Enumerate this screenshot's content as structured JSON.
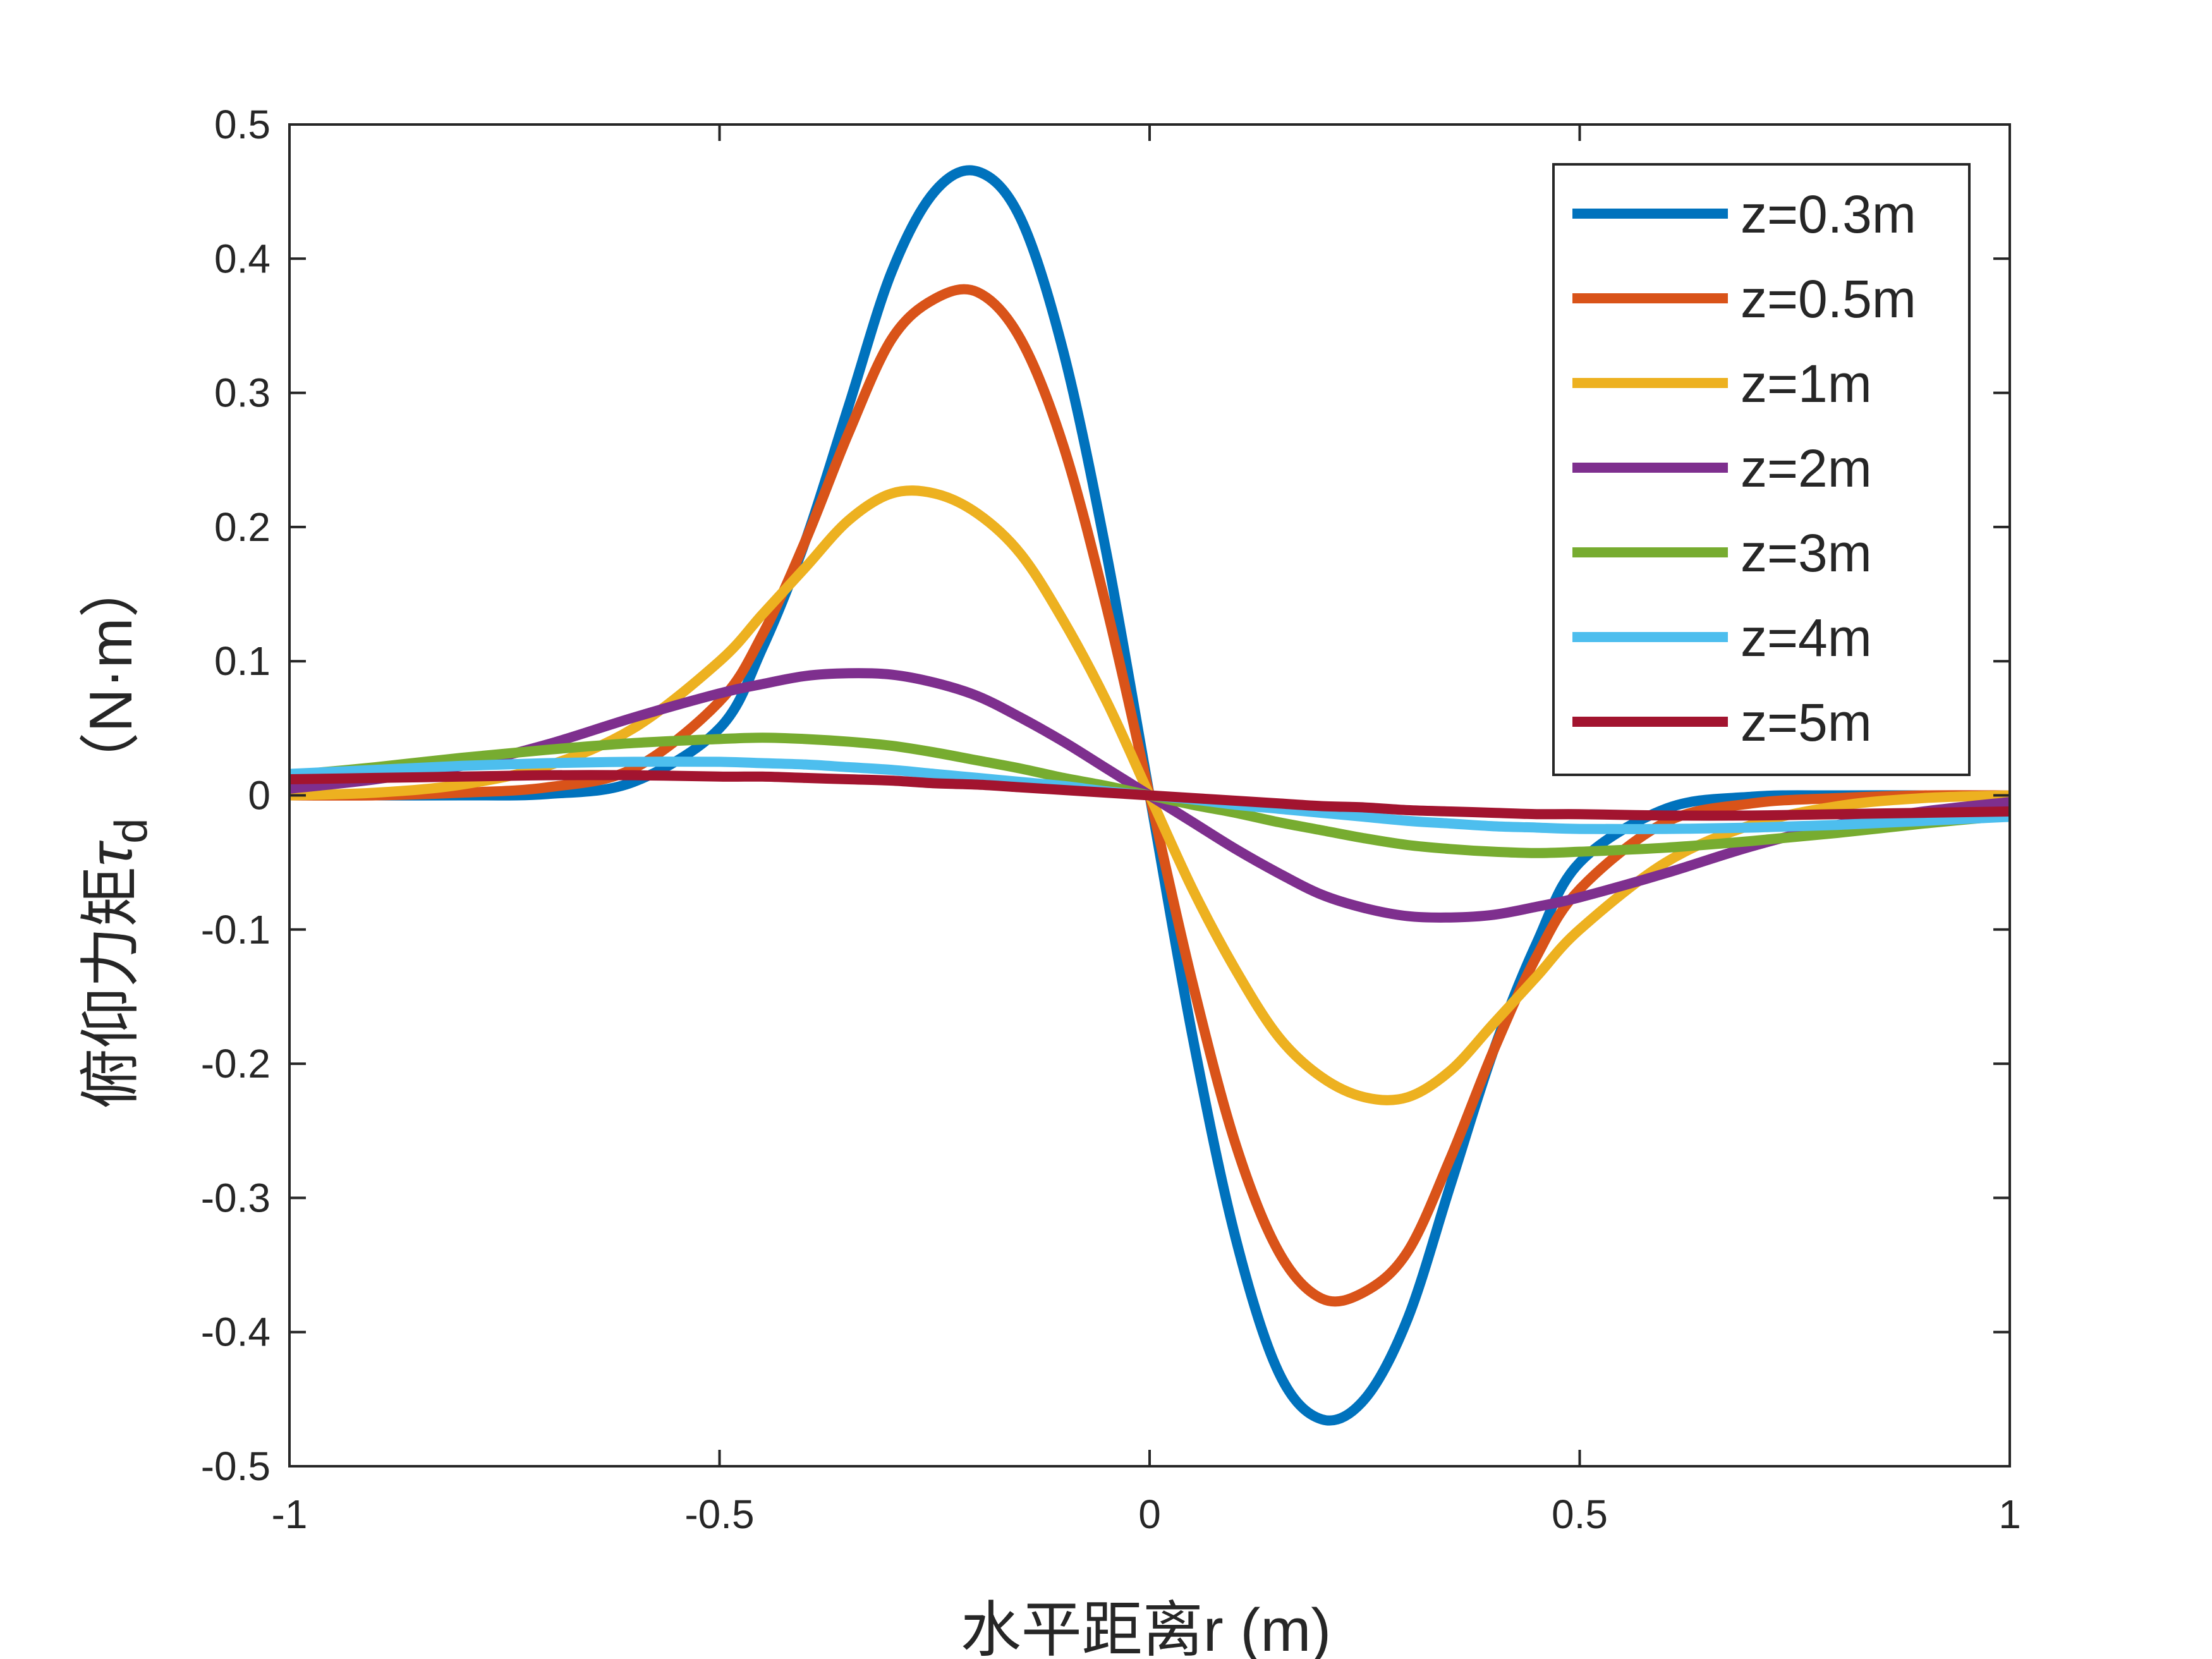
{
  "chart_data": {
    "type": "line",
    "xlabel": "水平距离r (m)",
    "ylabel_main": "俯仰力矩",
    "ylabel_symbol": "τ",
    "ylabel_subscript": "d",
    "ylabel_unit": "（N·m）",
    "xlim": [
      -1,
      1
    ],
    "ylim": [
      -0.5,
      0.5
    ],
    "x_ticks": [
      -1,
      -0.5,
      0,
      0.5,
      1
    ],
    "x_tick_labels": [
      "-1",
      "-0.5",
      "0",
      "0.5",
      "1"
    ],
    "y_ticks": [
      0.5,
      0.4,
      0.3,
      0.2,
      0.1,
      0,
      -0.1,
      -0.2,
      -0.3,
      -0.4,
      -0.5
    ],
    "y_tick_labels": [
      "0.5",
      "0.4",
      "0.3",
      "0.2",
      "0.1",
      "0",
      "-0.1",
      "-0.2",
      "-0.3",
      "-0.4",
      "-0.5"
    ],
    "grid": false,
    "legend_position": "top-right",
    "series": [
      {
        "name": "z=0.3m",
        "color": "#0072BD",
        "x": [
          -1,
          -0.9,
          -0.8,
          -0.7,
          -0.6,
          -0.5,
          -0.45,
          -0.4,
          -0.35,
          -0.3,
          -0.25,
          -0.2,
          -0.15,
          -0.1,
          -0.05,
          0,
          0.05,
          0.1,
          0.15,
          0.2,
          0.25,
          0.3,
          0.35,
          0.4,
          0.45,
          0.5,
          0.6,
          0.7,
          0.8,
          0.9,
          1
        ],
        "y": [
          0,
          0,
          0,
          0.001,
          0.01,
          0.05,
          0.11,
          0.19,
          0.29,
          0.39,
          0.45,
          0.465,
          0.43,
          0.33,
          0.18,
          0,
          -0.18,
          -0.33,
          -0.43,
          -0.465,
          -0.45,
          -0.39,
          -0.29,
          -0.19,
          -0.11,
          -0.05,
          -0.01,
          -0.001,
          0,
          0,
          0
        ]
      },
      {
        "name": "z=0.5m",
        "color": "#D95319",
        "x": [
          -1,
          -0.9,
          -0.8,
          -0.7,
          -0.6,
          -0.5,
          -0.45,
          -0.4,
          -0.35,
          -0.3,
          -0.25,
          -0.2,
          -0.15,
          -0.1,
          -0.05,
          0,
          0.05,
          0.1,
          0.15,
          0.2,
          0.25,
          0.3,
          0.35,
          0.4,
          0.45,
          0.5,
          0.6,
          0.7,
          0.8,
          0.9,
          1
        ],
        "y": [
          0,
          0,
          0.002,
          0.006,
          0.02,
          0.07,
          0.12,
          0.19,
          0.27,
          0.34,
          0.37,
          0.375,
          0.34,
          0.26,
          0.14,
          0,
          -0.14,
          -0.26,
          -0.34,
          -0.375,
          -0.37,
          -0.34,
          -0.27,
          -0.19,
          -0.12,
          -0.07,
          -0.02,
          -0.006,
          -0.002,
          0,
          0
        ]
      },
      {
        "name": "z=1m",
        "color": "#EDB120",
        "x": [
          -1,
          -0.9,
          -0.8,
          -0.7,
          -0.6,
          -0.5,
          -0.45,
          -0.4,
          -0.35,
          -0.3,
          -0.25,
          -0.2,
          -0.15,
          -0.1,
          -0.05,
          0,
          0.05,
          0.1,
          0.15,
          0.2,
          0.25,
          0.3,
          0.35,
          0.4,
          0.45,
          0.5,
          0.6,
          0.7,
          0.8,
          0.9,
          1
        ],
        "y": [
          0,
          0.002,
          0.008,
          0.022,
          0.05,
          0.1,
          0.135,
          0.17,
          0.205,
          0.225,
          0.225,
          0.21,
          0.18,
          0.13,
          0.07,
          0,
          -0.07,
          -0.13,
          -0.18,
          -0.21,
          -0.225,
          -0.225,
          -0.205,
          -0.17,
          -0.135,
          -0.1,
          -0.05,
          -0.022,
          -0.008,
          -0.002,
          0
        ]
      },
      {
        "name": "z=2m",
        "color": "#7E2F8E",
        "x": [
          -1,
          -0.9,
          -0.8,
          -0.7,
          -0.6,
          -0.5,
          -0.45,
          -0.4,
          -0.35,
          -0.3,
          -0.25,
          -0.2,
          -0.15,
          -0.1,
          -0.05,
          0,
          0.05,
          0.1,
          0.15,
          0.2,
          0.25,
          0.3,
          0.35,
          0.4,
          0.45,
          0.5,
          0.6,
          0.7,
          0.8,
          0.9,
          1
        ],
        "y": [
          0.005,
          0.012,
          0.022,
          0.038,
          0.058,
          0.076,
          0.083,
          0.089,
          0.091,
          0.09,
          0.084,
          0.074,
          0.058,
          0.04,
          0.02,
          0,
          -0.02,
          -0.04,
          -0.058,
          -0.074,
          -0.084,
          -0.09,
          -0.091,
          -0.089,
          -0.083,
          -0.076,
          -0.058,
          -0.038,
          -0.022,
          -0.012,
          -0.005
        ]
      },
      {
        "name": "z=3m",
        "color": "#77AC30",
        "x": [
          -1,
          -0.9,
          -0.8,
          -0.7,
          -0.6,
          -0.5,
          -0.45,
          -0.4,
          -0.35,
          -0.3,
          -0.25,
          -0.2,
          -0.15,
          -0.1,
          -0.05,
          0,
          0.05,
          0.1,
          0.15,
          0.2,
          0.25,
          0.3,
          0.35,
          0.4,
          0.45,
          0.5,
          0.6,
          0.7,
          0.8,
          0.9,
          1
        ],
        "y": [
          0.015,
          0.021,
          0.028,
          0.034,
          0.039,
          0.042,
          0.043,
          0.042,
          0.04,
          0.037,
          0.032,
          0.026,
          0.02,
          0.013,
          0.007,
          0,
          -0.007,
          -0.013,
          -0.02,
          -0.026,
          -0.032,
          -0.037,
          -0.04,
          -0.042,
          -0.043,
          -0.042,
          -0.039,
          -0.034,
          -0.028,
          -0.021,
          -0.015
        ]
      },
      {
        "name": "z=4m",
        "color": "#4DBEEE",
        "x": [
          -1,
          -0.9,
          -0.8,
          -0.7,
          -0.6,
          -0.5,
          -0.45,
          -0.4,
          -0.35,
          -0.3,
          -0.25,
          -0.2,
          -0.15,
          -0.1,
          -0.05,
          0,
          0.05,
          0.1,
          0.15,
          0.2,
          0.25,
          0.3,
          0.35,
          0.4,
          0.45,
          0.5,
          0.6,
          0.7,
          0.8,
          0.9,
          1
        ],
        "y": [
          0.016,
          0.019,
          0.022,
          0.024,
          0.025,
          0.025,
          0.024,
          0.023,
          0.021,
          0.019,
          0.016,
          0.013,
          0.01,
          0.007,
          0.003,
          0,
          -0.003,
          -0.007,
          -0.01,
          -0.013,
          -0.016,
          -0.019,
          -0.021,
          -0.023,
          -0.024,
          -0.025,
          -0.025,
          -0.024,
          -0.022,
          -0.019,
          -0.016
        ]
      },
      {
        "name": "z=5m",
        "color": "#A2142F",
        "x": [
          -1,
          -0.9,
          -0.8,
          -0.7,
          -0.6,
          -0.5,
          -0.45,
          -0.4,
          -0.35,
          -0.3,
          -0.25,
          -0.2,
          -0.15,
          -0.1,
          -0.05,
          0,
          0.05,
          0.1,
          0.15,
          0.2,
          0.25,
          0.3,
          0.35,
          0.4,
          0.45,
          0.5,
          0.6,
          0.7,
          0.8,
          0.9,
          1
        ],
        "y": [
          0.012,
          0.013,
          0.014,
          0.015,
          0.015,
          0.014,
          0.014,
          0.013,
          0.012,
          0.011,
          0.009,
          0.008,
          0.006,
          0.004,
          0.002,
          0,
          -0.002,
          -0.004,
          -0.006,
          -0.008,
          -0.009,
          -0.011,
          -0.012,
          -0.013,
          -0.014,
          -0.014,
          -0.015,
          -0.015,
          -0.014,
          -0.013,
          -0.012
        ]
      }
    ]
  }
}
